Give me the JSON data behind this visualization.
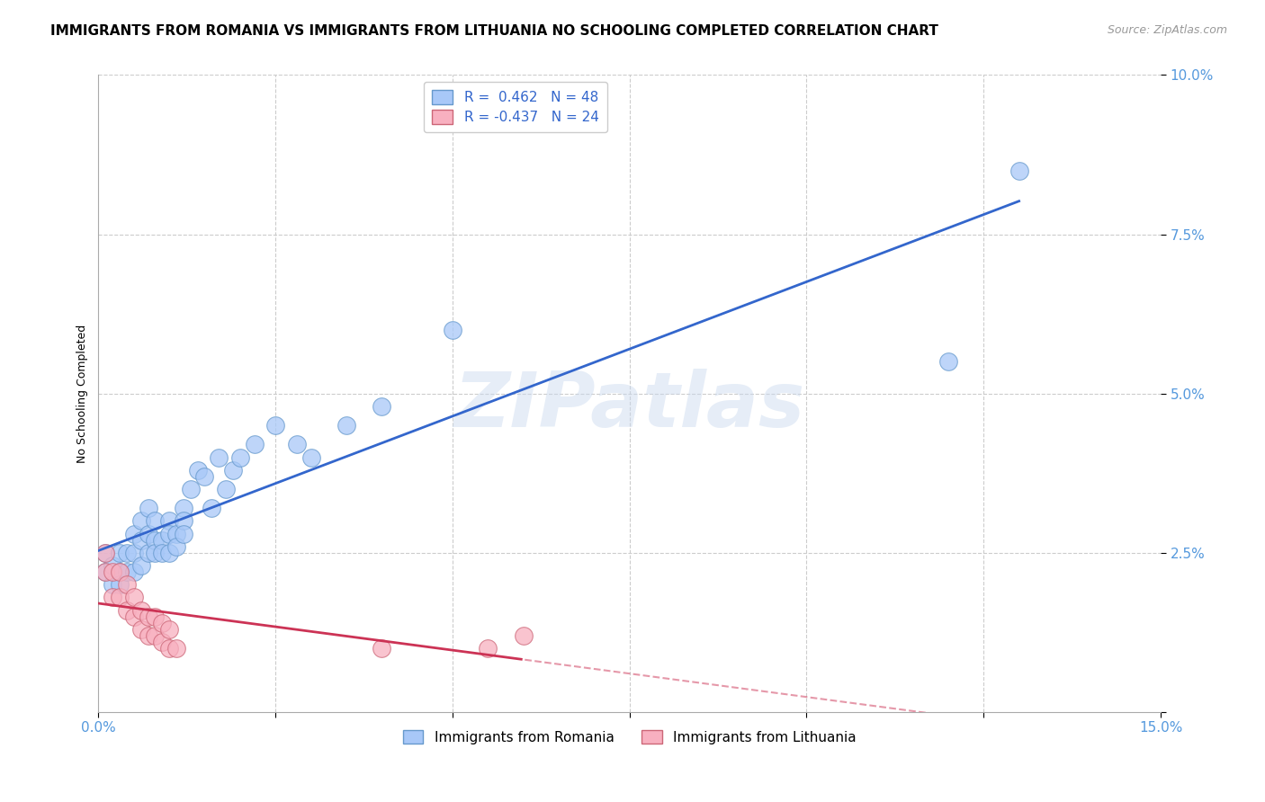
{
  "title": "IMMIGRANTS FROM ROMANIA VS IMMIGRANTS FROM LITHUANIA NO SCHOOLING COMPLETED CORRELATION CHART",
  "source": "Source: ZipAtlas.com",
  "tick_color": "#5599dd",
  "ylabel": "No Schooling Completed",
  "xlim": [
    0.0,
    0.15
  ],
  "ylim": [
    0.0,
    0.1
  ],
  "xticks": [
    0.0,
    0.025,
    0.05,
    0.075,
    0.1,
    0.125,
    0.15
  ],
  "yticks": [
    0.0,
    0.025,
    0.05,
    0.075,
    0.1
  ],
  "grid_color": "#cccccc",
  "background_color": "#ffffff",
  "watermark": "ZIPatlas",
  "romania_color": "#a8c8f8",
  "romania_edge_color": "#6699cc",
  "lithuania_color": "#f8b0c0",
  "lithuania_edge_color": "#cc6677",
  "romania_R": 0.462,
  "romania_N": 48,
  "lithuania_R": -0.437,
  "lithuania_N": 24,
  "romania_line_color": "#3366cc",
  "lithuania_line_color": "#cc3355",
  "romania_x": [
    0.001,
    0.001,
    0.002,
    0.002,
    0.003,
    0.003,
    0.003,
    0.004,
    0.004,
    0.005,
    0.005,
    0.005,
    0.006,
    0.006,
    0.006,
    0.007,
    0.007,
    0.007,
    0.008,
    0.008,
    0.008,
    0.009,
    0.009,
    0.01,
    0.01,
    0.01,
    0.011,
    0.011,
    0.012,
    0.012,
    0.012,
    0.013,
    0.014,
    0.015,
    0.016,
    0.017,
    0.018,
    0.019,
    0.02,
    0.022,
    0.025,
    0.028,
    0.03,
    0.035,
    0.04,
    0.05,
    0.12,
    0.13
  ],
  "romania_y": [
    0.025,
    0.022,
    0.023,
    0.02,
    0.025,
    0.022,
    0.02,
    0.025,
    0.022,
    0.025,
    0.028,
    0.022,
    0.03,
    0.027,
    0.023,
    0.032,
    0.028,
    0.025,
    0.03,
    0.027,
    0.025,
    0.027,
    0.025,
    0.03,
    0.028,
    0.025,
    0.028,
    0.026,
    0.032,
    0.03,
    0.028,
    0.035,
    0.038,
    0.037,
    0.032,
    0.04,
    0.035,
    0.038,
    0.04,
    0.042,
    0.045,
    0.042,
    0.04,
    0.045,
    0.048,
    0.06,
    0.055,
    0.085
  ],
  "lithuania_x": [
    0.001,
    0.001,
    0.002,
    0.002,
    0.003,
    0.003,
    0.004,
    0.004,
    0.005,
    0.005,
    0.006,
    0.006,
    0.007,
    0.007,
    0.008,
    0.008,
    0.009,
    0.009,
    0.01,
    0.01,
    0.011,
    0.04,
    0.055,
    0.06
  ],
  "lithuania_y": [
    0.025,
    0.022,
    0.022,
    0.018,
    0.022,
    0.018,
    0.02,
    0.016,
    0.018,
    0.015,
    0.016,
    0.013,
    0.015,
    0.012,
    0.015,
    0.012,
    0.014,
    0.011,
    0.013,
    0.01,
    0.01,
    0.01,
    0.01,
    0.012
  ],
  "legend_blue_label": "Immigrants from Romania",
  "legend_pink_label": "Immigrants from Lithuania",
  "title_fontsize": 11,
  "axis_label_fontsize": 9,
  "tick_fontsize": 11,
  "legend_fontsize": 11
}
